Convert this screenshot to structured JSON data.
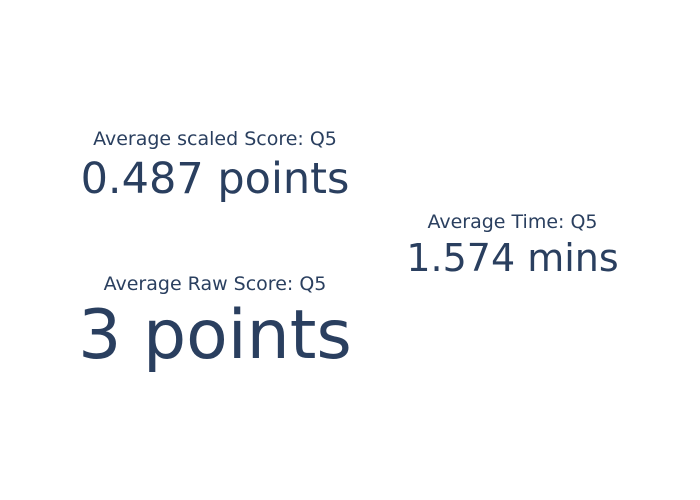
{
  "chart_data": [
    {
      "type": "indicator",
      "title": "Average scaled Score: Q5",
      "value": 0.487,
      "value_text": "0.487",
      "suffix": " points"
    },
    {
      "type": "indicator",
      "title": "Average Raw Score: Q5",
      "value": 3,
      "value_text": "3",
      "suffix": " points"
    },
    {
      "type": "indicator",
      "title": "Average Time: Q5",
      "value": 1.574,
      "value_text": "1.574",
      "suffix": " mins"
    }
  ],
  "colors": {
    "text": "#2a3f5f",
    "background": "#ffffff"
  }
}
